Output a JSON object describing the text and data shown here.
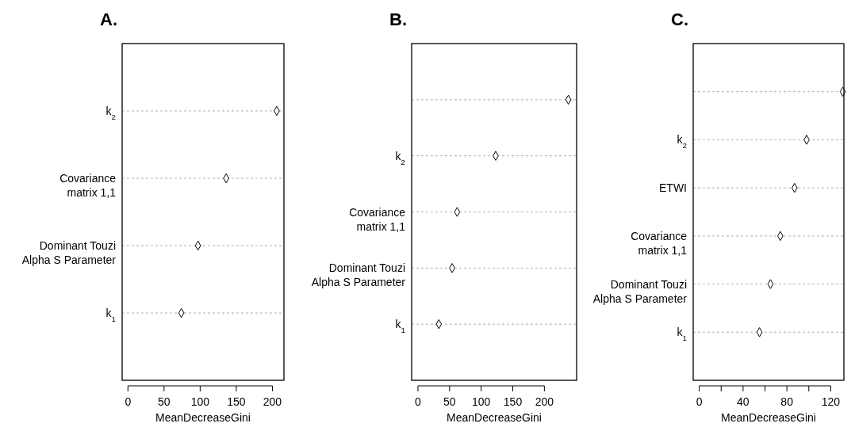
{
  "chart_data": [
    {
      "type": "scatter",
      "title": "A.",
      "xlabel": "MeanDecreaseGini",
      "orientation": "horizontal",
      "categories": [
        "k$_{2}$",
        "Covariance\nmatrix 1,1",
        "Dominant Touzi\nAlpha S Parameter",
        "k$_{1}$"
      ],
      "series": [
        {
          "color": "#000000",
          "values": [
            206,
            136,
            97,
            74
          ]
        }
      ],
      "xlim": [
        -8,
        216
      ],
      "xticks": [
        0,
        50,
        100,
        150,
        200
      ],
      "grid": "y",
      "marker": "diamond"
    },
    {
      "type": "scatter",
      "title": "B.",
      "xlabel": "MeanDecreaseGini",
      "orientation": "horizontal",
      "categories": [
        null,
        "k$_{2}$",
        "Covariance\nmatrix 1,1",
        "Dominant Touzi\nAlpha S Parameter",
        "k$_{1}$"
      ],
      "series": [
        {
          "color": "#000000",
          "values": [
            238,
            123,
            62,
            54,
            33
          ]
        }
      ],
      "xlim": [
        -10,
        251
      ],
      "xticks": [
        0,
        50,
        100,
        150,
        200
      ],
      "grid": "y",
      "marker": "diamond"
    },
    {
      "type": "scatter",
      "title": "C.",
      "xlabel": "MeanDecreaseGini",
      "orientation": "horizontal",
      "categories": [
        null,
        "k$_{2}$",
        "ETWI",
        "Covariance\nmatrix 1,1",
        "Dominant Touzi\nAlpha S Parameter",
        "k$_{1}$"
      ],
      "series": [
        {
          "color": "#000000",
          "values": [
            131,
            98,
            87,
            74,
            65,
            55
          ]
        }
      ],
      "xlim": [
        -5.5,
        132
      ],
      "xticks": [
        0,
        {
          "value": 20,
          "label": null
        },
        40,
        {
          "value": 60,
          "label": null
        },
        80,
        {
          "value": 100,
          "label": null
        },
        120
      ],
      "grid": "y",
      "marker": "diamond"
    }
  ]
}
